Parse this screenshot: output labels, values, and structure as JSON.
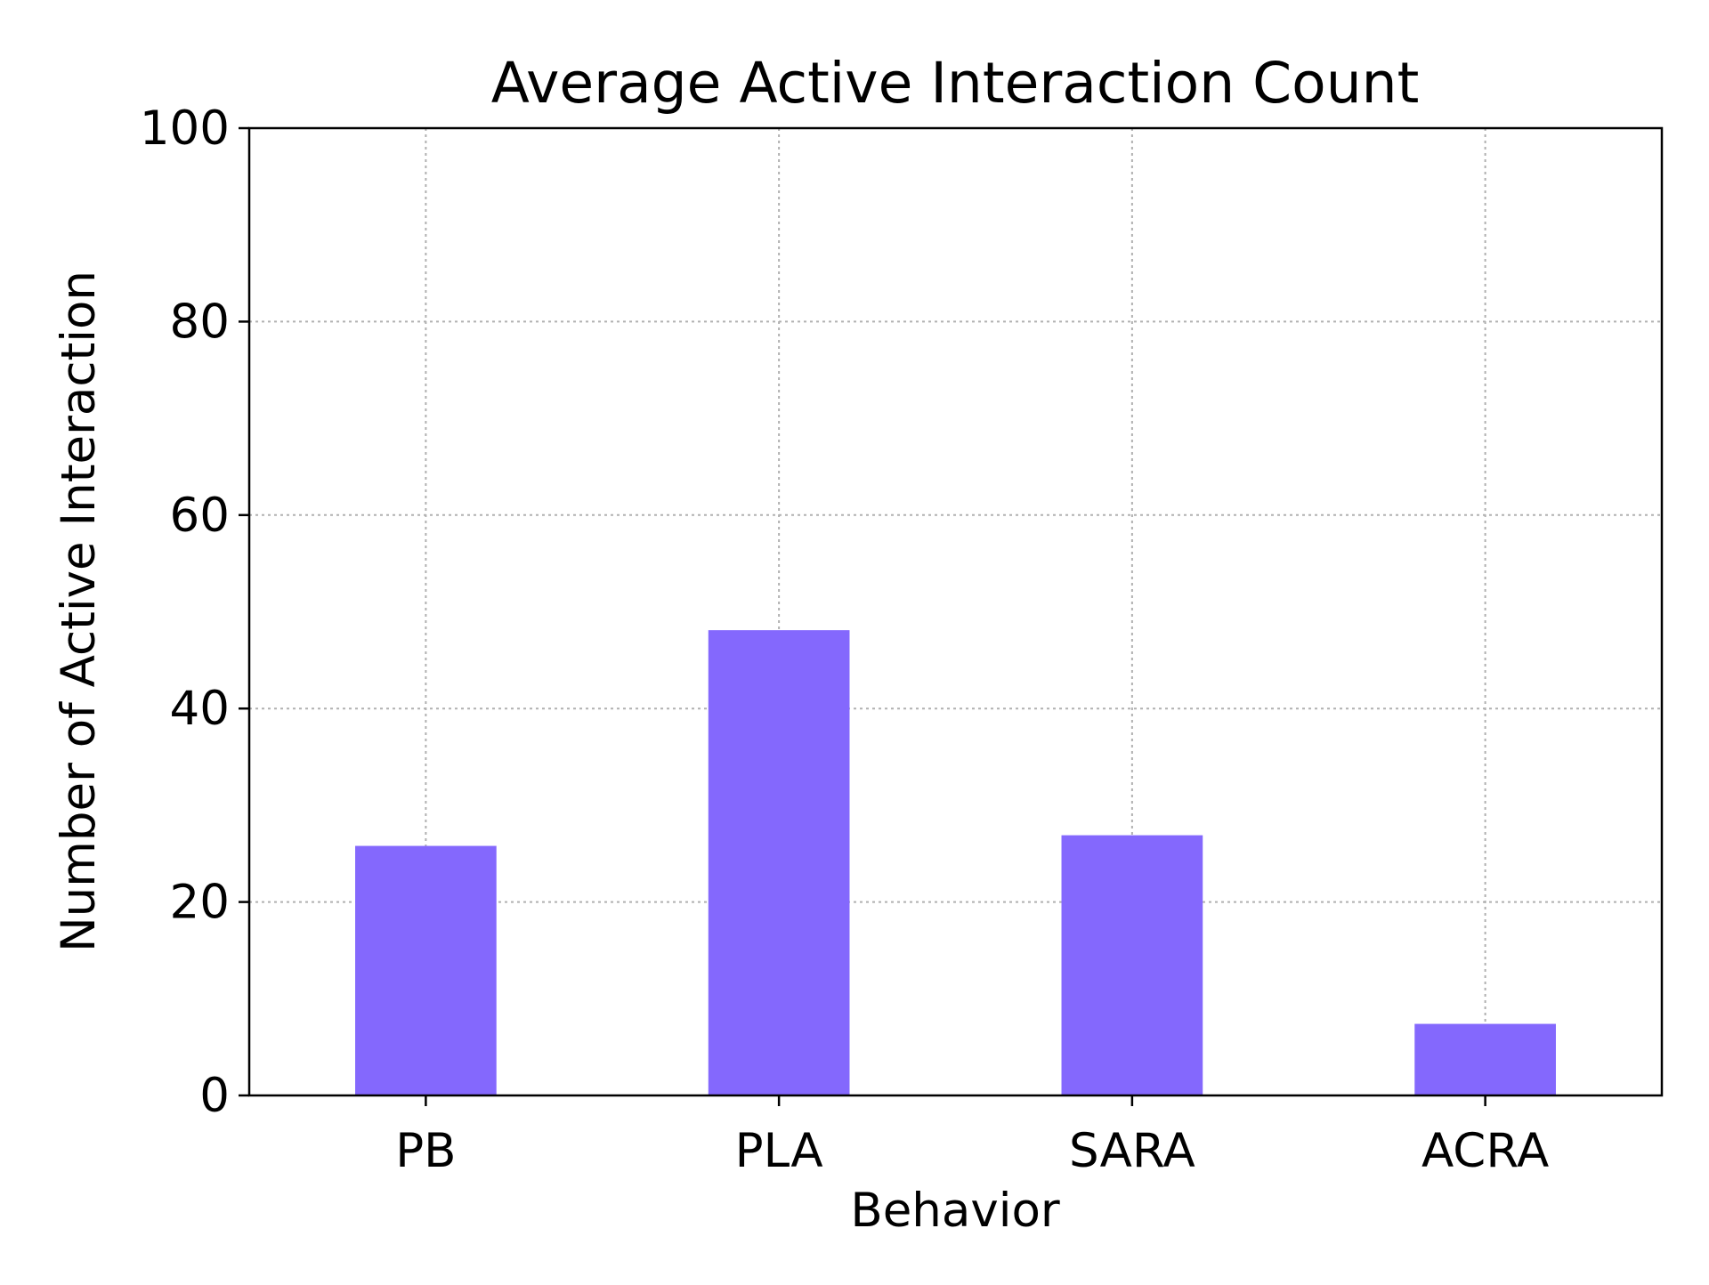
{
  "chart_data": {
    "type": "bar",
    "title": "Average Active Interaction Count",
    "xlabel": "Behavior",
    "ylabel": "Number of Active Interaction",
    "categories": [
      "PB",
      "PLA",
      "SARA",
      "ACRA"
    ],
    "values": [
      25.8,
      48.1,
      26.9,
      7.4
    ],
    "ylim": [
      0,
      100
    ],
    "yticks": [
      "0",
      "20",
      "40",
      "60",
      "80",
      "100"
    ],
    "grid": true,
    "bar_color": "#8468fd",
    "grid_color": "#b0b0b0"
  }
}
